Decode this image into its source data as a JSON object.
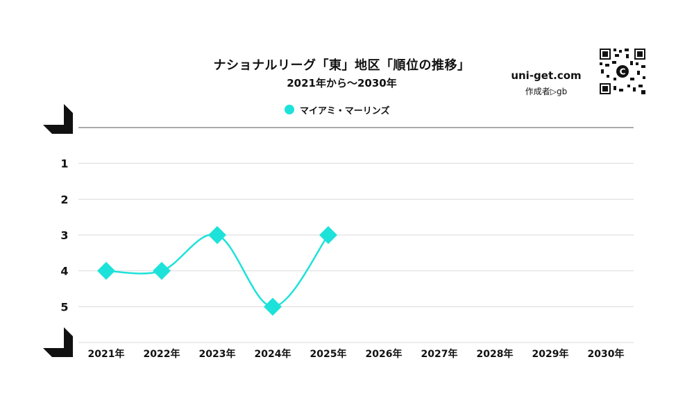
{
  "header": {
    "title": "ナショナルリーグ「東」地区「順位の推移」",
    "subtitle": "2021年から〜2030年",
    "brand": "uni-get.com",
    "credit": "作成者▷gb"
  },
  "colors": {
    "series": "#1de2d9",
    "grid": "#d9d9d9",
    "axis": "#555555",
    "text": "#111111"
  },
  "chart_data": {
    "type": "line",
    "title": "ナショナルリーグ「東」地区「順位の推移」",
    "subtitle": "2021年から〜2030年",
    "categories": [
      "2021年",
      "2022年",
      "2023年",
      "2024年",
      "2025年",
      "2026年",
      "2027年",
      "2028年",
      "2029年",
      "2030年"
    ],
    "y_ticks": [
      1,
      2,
      3,
      4,
      5
    ],
    "ylim": [
      6,
      0
    ],
    "y_inverted": true,
    "grid": true,
    "legend_position": "top",
    "series": [
      {
        "name": "マイアミ・マーリンズ",
        "values": [
          4,
          4,
          3,
          5,
          3,
          null,
          null,
          null,
          null,
          null
        ],
        "marker": "diamond",
        "smooth": true
      }
    ]
  }
}
